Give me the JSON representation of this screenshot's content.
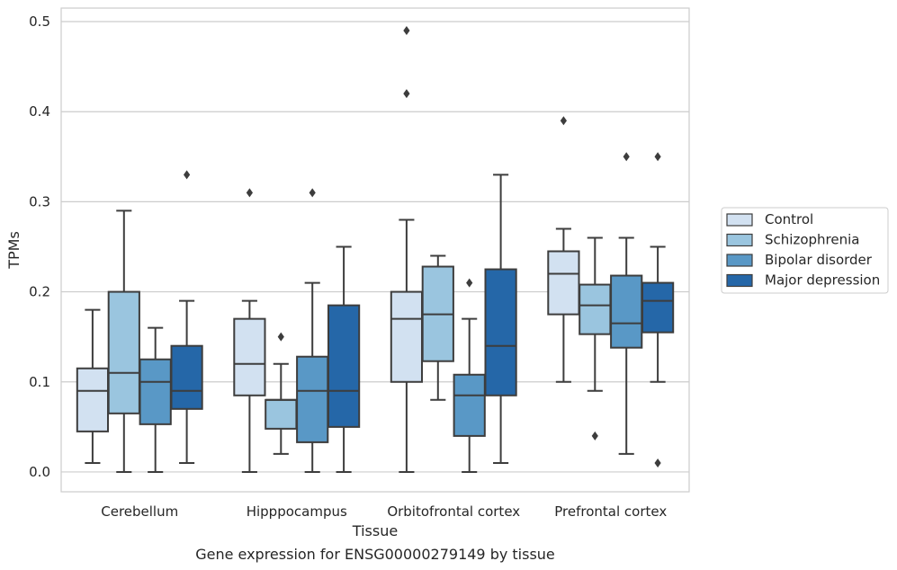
{
  "chart_data": {
    "type": "box",
    "title": "",
    "xlabel": "Tissue",
    "ylabel": "TPMs",
    "caption": "Gene expression for ENSG00000279149 by tissue",
    "ylim": [
      -0.022,
      0.515
    ],
    "yticks": [
      "0.0",
      "0.1",
      "0.2",
      "0.3",
      "0.4",
      "0.5"
    ],
    "grid": true,
    "legend_position": "right",
    "categories": [
      "Cerebellum",
      "Hipppocampus",
      "Orbitofrontal cortex",
      "Prefrontal cortex"
    ],
    "series": [
      {
        "name": "Control",
        "color": "#d2e1f1",
        "boxes": [
          {
            "whislo": 0.01,
            "q1": 0.045,
            "med": 0.09,
            "q3": 0.115,
            "whishi": 0.18,
            "fliers": []
          },
          {
            "whislo": 0.0,
            "q1": 0.085,
            "med": 0.12,
            "q3": 0.17,
            "whishi": 0.19,
            "fliers": [
              0.31
            ]
          },
          {
            "whislo": 0.0,
            "q1": 0.1,
            "med": 0.17,
            "q3": 0.2,
            "whishi": 0.28,
            "fliers": [
              0.49,
              0.42
            ]
          },
          {
            "whislo": 0.1,
            "q1": 0.175,
            "med": 0.22,
            "q3": 0.245,
            "whishi": 0.27,
            "fliers": [
              0.39
            ]
          }
        ]
      },
      {
        "name": "Schizophrenia",
        "color": "#9ac5df",
        "boxes": [
          {
            "whislo": 0.0,
            "q1": 0.065,
            "med": 0.11,
            "q3": 0.2,
            "whishi": 0.29,
            "fliers": []
          },
          {
            "whislo": 0.02,
            "q1": 0.048,
            "med": 0.08,
            "q3": 0.08,
            "whishi": 0.12,
            "fliers": [
              0.15
            ]
          },
          {
            "whislo": 0.08,
            "q1": 0.123,
            "med": 0.175,
            "q3": 0.228,
            "whishi": 0.24,
            "fliers": []
          },
          {
            "whislo": 0.09,
            "q1": 0.153,
            "med": 0.185,
            "q3": 0.208,
            "whishi": 0.26,
            "fliers": [
              0.04
            ]
          }
        ]
      },
      {
        "name": "Bipolar disorder",
        "color": "#5998c6",
        "boxes": [
          {
            "whislo": 0.0,
            "q1": 0.053,
            "med": 0.1,
            "q3": 0.125,
            "whishi": 0.16,
            "fliers": []
          },
          {
            "whislo": 0.0,
            "q1": 0.033,
            "med": 0.09,
            "q3": 0.128,
            "whishi": 0.21,
            "fliers": [
              0.31
            ]
          },
          {
            "whislo": 0.0,
            "q1": 0.04,
            "med": 0.085,
            "q3": 0.108,
            "whishi": 0.17,
            "fliers": [
              0.21
            ]
          },
          {
            "whislo": 0.02,
            "q1": 0.138,
            "med": 0.165,
            "q3": 0.218,
            "whishi": 0.26,
            "fliers": [
              0.35
            ]
          }
        ]
      },
      {
        "name": "Major depression",
        "color": "#2567a8",
        "boxes": [
          {
            "whislo": 0.01,
            "q1": 0.07,
            "med": 0.09,
            "q3": 0.14,
            "whishi": 0.19,
            "fliers": [
              0.33
            ]
          },
          {
            "whislo": 0.0,
            "q1": 0.05,
            "med": 0.09,
            "q3": 0.185,
            "whishi": 0.25,
            "fliers": []
          },
          {
            "whislo": 0.01,
            "q1": 0.085,
            "med": 0.14,
            "q3": 0.225,
            "whishi": 0.33,
            "fliers": []
          },
          {
            "whislo": 0.1,
            "q1": 0.155,
            "med": 0.19,
            "q3": 0.21,
            "whishi": 0.25,
            "fliers": [
              0.35,
              0.01
            ]
          }
        ]
      }
    ]
  }
}
